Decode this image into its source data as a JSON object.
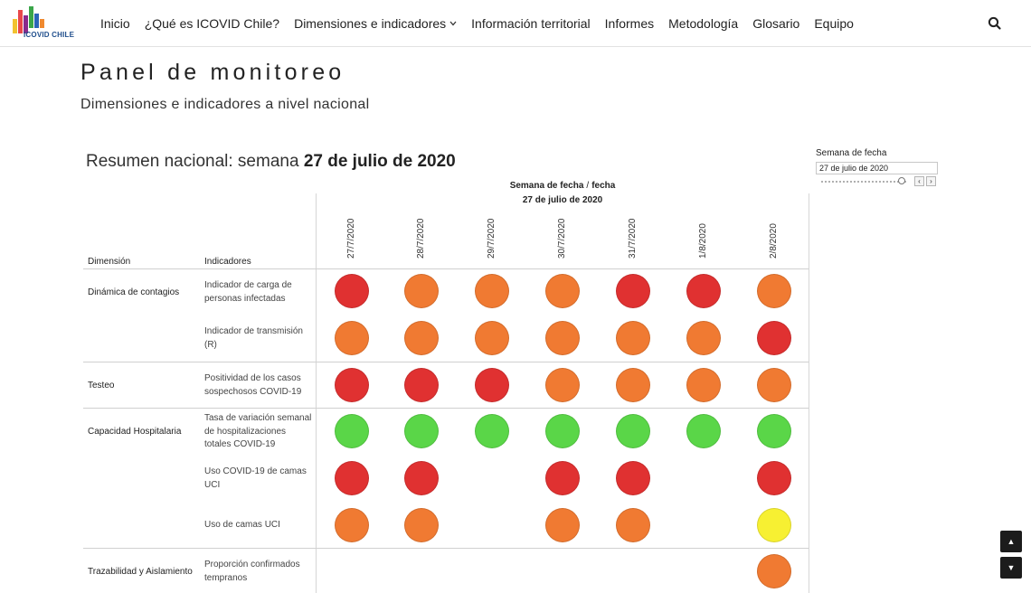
{
  "nav": {
    "logo_text": "ICOVID CHILE",
    "items": [
      {
        "label": "Inicio"
      },
      {
        "label": "¿Qué es ICOVID Chile?"
      },
      {
        "label": "Dimensiones e indicadores"
      },
      {
        "label": "Información territorial"
      },
      {
        "label": "Informes"
      },
      {
        "label": "Metodología"
      },
      {
        "label": "Glosario"
      },
      {
        "label": "Equipo"
      }
    ],
    "search_icon": "search-icon"
  },
  "header": {
    "title": "Panel de monitoreo",
    "subtitle": "Dimensiones e indicadores a nivel nacional"
  },
  "summary": {
    "prefix": "Resumen nacional: semana ",
    "week": "27 de julio de 2020"
  },
  "column_header": {
    "label_a": "Semana de fecha",
    "separator": "/",
    "label_b": "fecha",
    "value": "27 de julio de 2020"
  },
  "table": {
    "dimension_header": "Dimensión",
    "indicator_header": "Indicadores",
    "dates": [
      "27/7/2020",
      "28/7/2020",
      "29/7/2020",
      "30/7/2020",
      "31/7/2020",
      "1/8/2020",
      "2/8/2020"
    ],
    "dimensions": [
      "Dinámica de contagios",
      "Testeo",
      "Capacidad Hospitalaria",
      "Trazabilidad y Aislamiento"
    ],
    "colors": {
      "red": "#e03131",
      "orange": "#f07a32",
      "green": "#5ad648",
      "yellow": "#f7f032"
    },
    "rows": [
      {
        "dimension": "Dinámica de contagios",
        "indicator": "Indicador de carga de personas infectadas",
        "statuses": [
          "red",
          "orange",
          "orange",
          "orange",
          "red",
          "red",
          "orange"
        ]
      },
      {
        "dimension": "Dinámica de contagios",
        "indicator": "Indicador de transmisión (R)",
        "statuses": [
          "orange",
          "orange",
          "orange",
          "orange",
          "orange",
          "orange",
          "red"
        ]
      },
      {
        "dimension": "Testeo",
        "indicator": "Positividad de los casos sospechosos COVID-19",
        "statuses": [
          "red",
          "red",
          "red",
          "orange",
          "orange",
          "orange",
          "orange"
        ]
      },
      {
        "dimension": "Capacidad Hospitalaria",
        "indicator": "Tasa de variación semanal de hospitalizaciones totales COVID-19",
        "statuses": [
          "green",
          "green",
          "green",
          "green",
          "green",
          "green",
          "green"
        ]
      },
      {
        "dimension": "Capacidad Hospitalaria",
        "indicator": "Uso COVID-19 de camas UCI",
        "statuses": [
          "red",
          "red",
          null,
          "red",
          "red",
          null,
          "red"
        ]
      },
      {
        "dimension": "Capacidad Hospitalaria",
        "indicator": "Uso de camas UCI",
        "statuses": [
          "orange",
          "orange",
          null,
          "orange",
          "orange",
          null,
          "yellow"
        ]
      },
      {
        "dimension": "Trazabilidad y Aislamiento",
        "indicator": "Proporción confirmados tempranos",
        "statuses": [
          null,
          null,
          null,
          null,
          null,
          null,
          "orange"
        ]
      }
    ]
  },
  "filter": {
    "title": "Semana de fecha",
    "value": "27 de julio de 2020",
    "prev_symbol": "‹",
    "next_symbol": "›"
  },
  "scroll": {
    "up_symbol": "▲",
    "down_symbol": "▼"
  }
}
